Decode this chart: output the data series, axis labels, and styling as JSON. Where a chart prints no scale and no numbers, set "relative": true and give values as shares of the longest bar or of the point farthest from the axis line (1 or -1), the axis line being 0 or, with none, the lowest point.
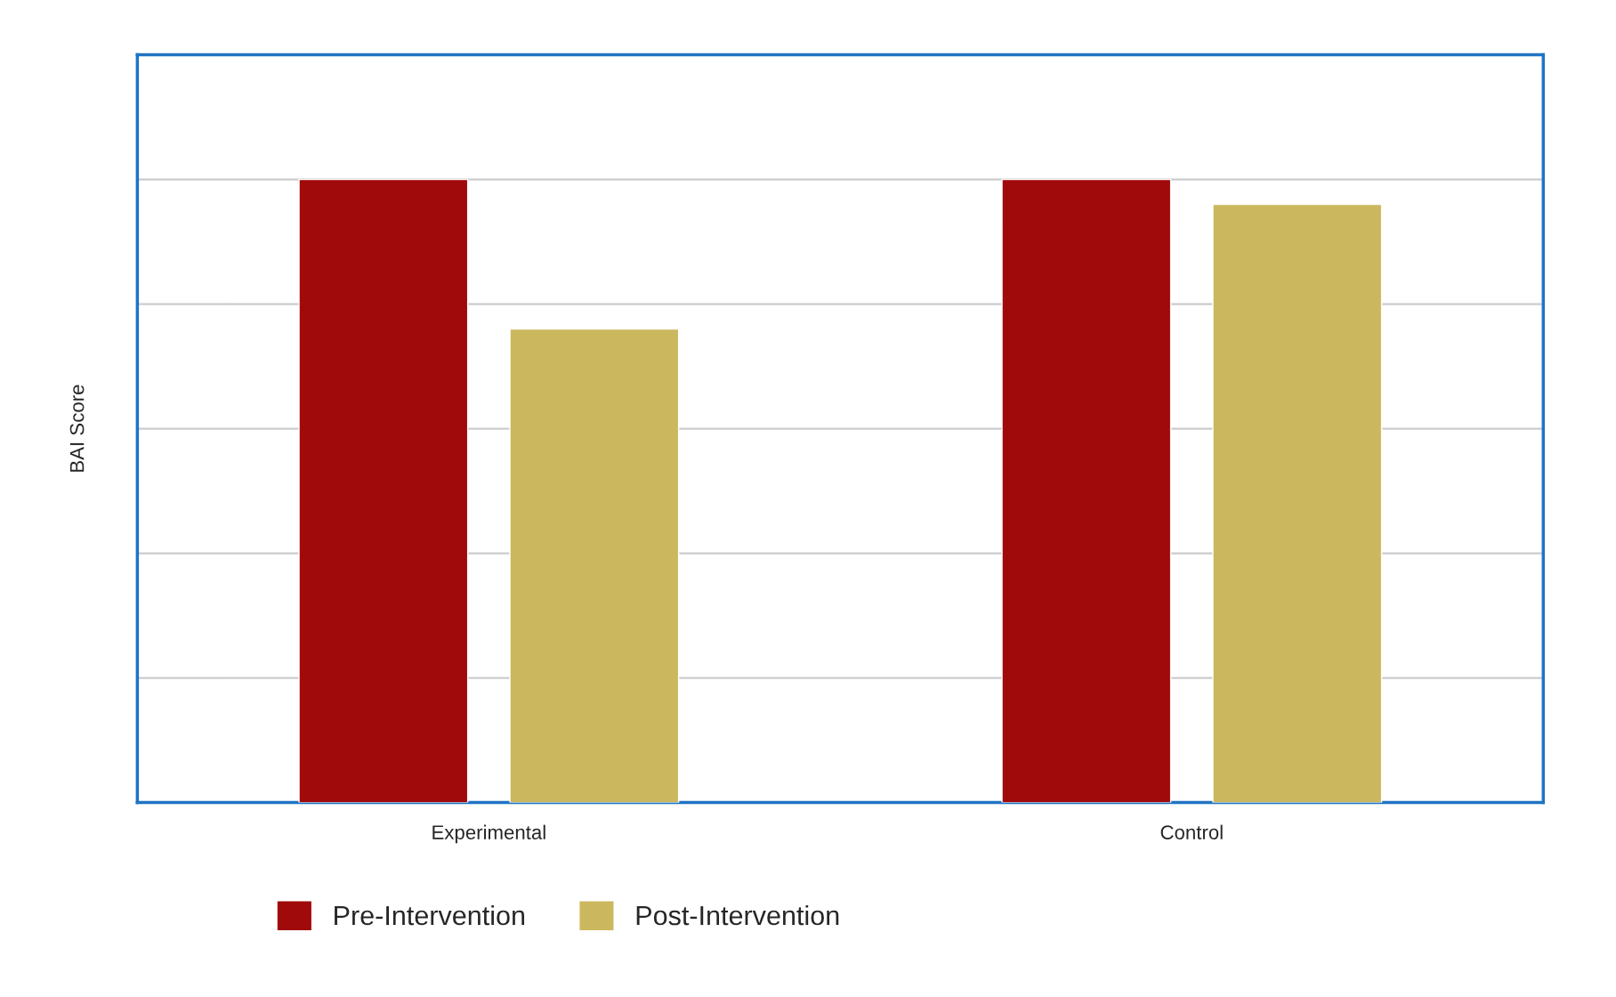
{
  "chart_data": {
    "type": "bar",
    "ylabel": "BAI Score",
    "categories": [
      "Experimental",
      "Control"
    ],
    "relative": true,
    "grid": "y",
    "legend": "bottom",
    "series": [
      {
        "name": "Pre-Intervention",
        "color": "#a10a0a",
        "values": [
          1,
          1
        ]
      },
      {
        "name": "Post-Intervention",
        "color": "#cbb85e",
        "values": [
          0.76,
          0.96
        ]
      }
    ]
  }
}
